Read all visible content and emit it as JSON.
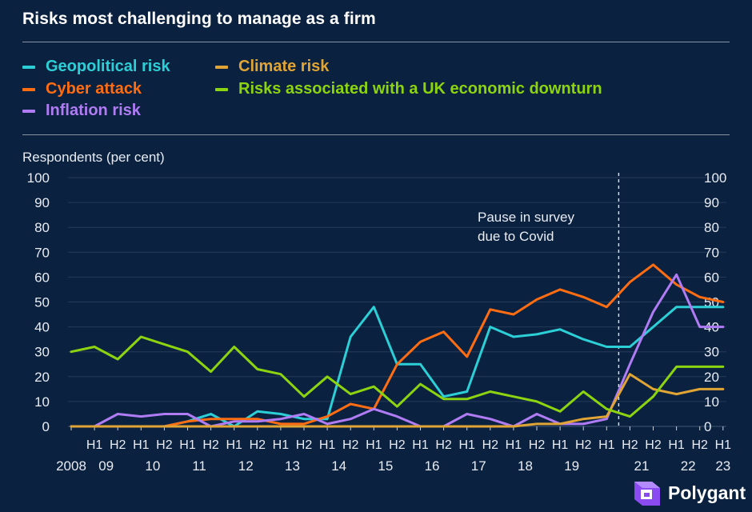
{
  "title": "Risks most challenging to manage as a firm",
  "legend": [
    {
      "name": "Geopolitical risk",
      "color": "#2ccfd6"
    },
    {
      "name": "Climate risk",
      "color": "#e0a534"
    },
    {
      "name": "Cyber attack",
      "color": "#ff6d12"
    },
    {
      "name": "Risks associated with a UK economic downturn",
      "color": "#8dd410"
    },
    {
      "name": "Inflation risk",
      "color": "#b07cf4"
    }
  ],
  "annotation": "Pause in survey\ndue to Covid",
  "logo": {
    "text": "Polygant",
    "icon": "polygant-cube-icon"
  },
  "chart_data": {
    "type": "line",
    "ylabel": "Respondents (per cent)",
    "ylim": [
      0,
      100
    ],
    "yticks": [
      0,
      10,
      20,
      30,
      40,
      50,
      60,
      70,
      80,
      90,
      100
    ],
    "x_half_labels": [
      "",
      "H1",
      "H2",
      "H1",
      "H2",
      "H1",
      "H2",
      "H1",
      "H2",
      "H1",
      "H2",
      "H1",
      "H2",
      "H1",
      "H2",
      "H1",
      "H2",
      "H1",
      "H2",
      "H1",
      "H2",
      "H1",
      "H2",
      "H1",
      "H2",
      "H2",
      "H1",
      "H2",
      "H1"
    ],
    "year_labels": [
      {
        "label": "2008",
        "at": 0
      },
      {
        "label": "09",
        "at": 1.5
      },
      {
        "label": "10",
        "at": 3.5
      },
      {
        "label": "11",
        "at": 5.5
      },
      {
        "label": "12",
        "at": 7.5
      },
      {
        "label": "13",
        "at": 9.5
      },
      {
        "label": "14",
        "at": 11.5
      },
      {
        "label": "15",
        "at": 13.5
      },
      {
        "label": "16",
        "at": 15.5
      },
      {
        "label": "17",
        "at": 17.5
      },
      {
        "label": "18",
        "at": 19.5
      },
      {
        "label": "19",
        "at": 21.5
      },
      {
        "label": "21",
        "at": 24.5
      },
      {
        "label": "22",
        "at": 26.5
      },
      {
        "label": "23",
        "at": 28
      }
    ],
    "pause_marker_at": 24,
    "series": [
      {
        "name": "Geopolitical risk",
        "color": "#2ccfd6",
        "values": [
          0,
          0,
          0,
          0,
          0,
          2,
          5,
          0,
          6,
          5,
          3,
          3,
          36,
          48,
          25,
          25,
          12,
          14,
          40,
          36,
          37,
          39,
          35,
          32,
          32,
          40,
          48,
          48,
          48
        ]
      },
      {
        "name": "Cyber attack",
        "color": "#ff6d12",
        "values": [
          0,
          0,
          0,
          0,
          0,
          2,
          3,
          3,
          3,
          1,
          1,
          4,
          9,
          7,
          25,
          34,
          38,
          28,
          47,
          45,
          51,
          55,
          52,
          48,
          58,
          65,
          57,
          52,
          50
        ]
      },
      {
        "name": "Inflation risk",
        "color": "#b07cf4",
        "values": [
          0,
          0,
          5,
          4,
          5,
          5,
          0,
          2,
          2,
          3,
          5,
          1,
          3,
          7,
          4,
          0,
          0,
          5,
          3,
          0,
          5,
          1,
          1,
          3,
          25,
          46,
          61,
          40,
          40
        ]
      },
      {
        "name": "Climate risk",
        "color": "#e0a534",
        "values": [
          0,
          0,
          0,
          0,
          0,
          0,
          0,
          0,
          0,
          0,
          0,
          0,
          0,
          0,
          0,
          0,
          0,
          0,
          0,
          0,
          1,
          1,
          3,
          4,
          21,
          15,
          13,
          15,
          15
        ]
      },
      {
        "name": "Risks associated with a UK economic downturn",
        "color": "#8dd410",
        "values": [
          30,
          32,
          27,
          36,
          33,
          30,
          22,
          32,
          23,
          21,
          12,
          20,
          13,
          16,
          8,
          17,
          11,
          11,
          14,
          12,
          10,
          6,
          14,
          7,
          4,
          12,
          24,
          24,
          24
        ]
      }
    ]
  }
}
